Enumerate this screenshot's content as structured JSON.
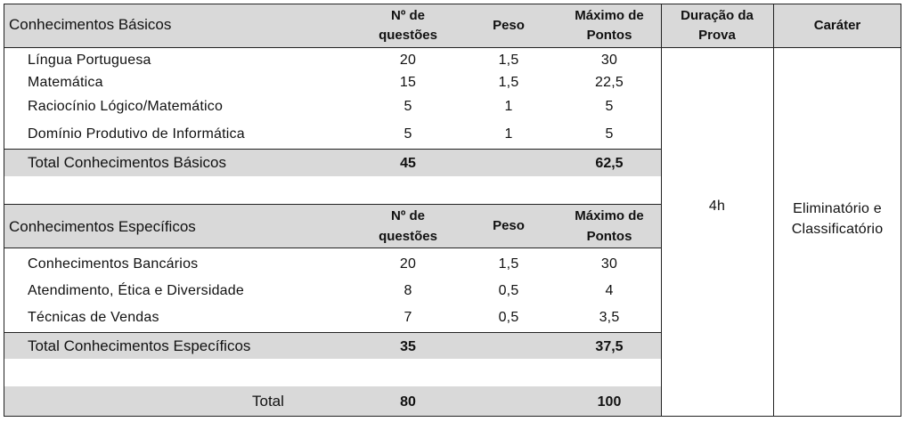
{
  "basic": {
    "title": "Conhecimentos Básicos",
    "col_questions": [
      "Nº de",
      "questões"
    ],
    "col_weight": "Peso",
    "col_max": [
      "Máximo de",
      "Pontos"
    ],
    "rows": [
      {
        "subject": "Língua Portuguesa",
        "questions": "20",
        "weight": "1,5",
        "max": "30"
      },
      {
        "subject": "Matemática",
        "questions": "15",
        "weight": "1,5",
        "max": "22,5"
      },
      {
        "subject": "Raciocínio Lógico/Matemático",
        "questions": "5",
        "weight": "1",
        "max": "5"
      },
      {
        "subject": "Domínio Produtivo de Informática",
        "questions": "5",
        "weight": "1",
        "max": "5"
      }
    ],
    "total": {
      "label": "Total Conhecimentos Básicos",
      "questions": "45",
      "max": "62,5"
    }
  },
  "specific": {
    "title": "Conhecimentos Específicos",
    "col_questions": [
      "Nº de",
      "questões"
    ],
    "col_weight": "Peso",
    "col_max": [
      "Máximo de",
      "Pontos"
    ],
    "rows": [
      {
        "subject": "Conhecimentos Bancários",
        "questions": "20",
        "weight": "1,5",
        "max": "30"
      },
      {
        "subject": "Atendimento, Ética e Diversidade",
        "questions": "8",
        "weight": "0,5",
        "max": "4"
      },
      {
        "subject": "Técnicas de Vendas",
        "questions": "7",
        "weight": "0,5",
        "max": "3,5"
      }
    ],
    "total": {
      "label": "Total Conhecimentos Específicos",
      "questions": "35",
      "max": "37,5"
    }
  },
  "duration": {
    "header": [
      "Duração da",
      "Prova"
    ],
    "value": "4h"
  },
  "character": {
    "header": "Caráter",
    "value": [
      "Eliminatório e",
      "Classificatório"
    ]
  },
  "grand_total": {
    "label": "Total",
    "questions": "80",
    "max": "100"
  }
}
